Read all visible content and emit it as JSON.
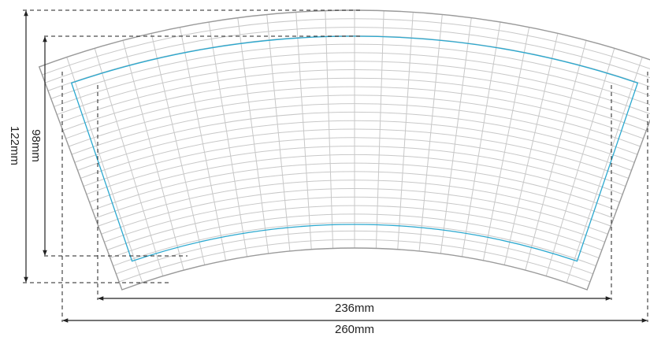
{
  "diagram": {
    "outer_width_label": "260mm",
    "inner_width_label": "236mm",
    "outer_height_label": "122mm",
    "inner_height_label": "98mm"
  },
  "colors": {
    "grid_line": "#c8c8c8",
    "outer_outline": "#9a9a9a",
    "print_area": "#2aa8cf",
    "dimension": "#222222",
    "background": "#ffffff"
  }
}
